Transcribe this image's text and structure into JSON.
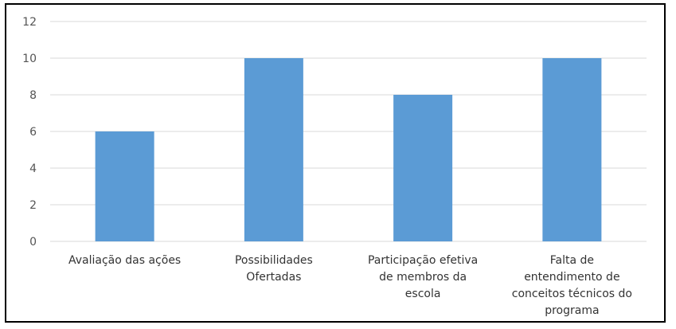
{
  "chart_data": {
    "type": "bar",
    "categories": [
      [
        "Avaliação das ações"
      ],
      [
        "Possibilidades",
        "Ofertadas"
      ],
      [
        "Participação efetiva",
        "de membros da",
        "escola"
      ],
      [
        "Falta de",
        "entendimento de",
        "conceitos técnicos do",
        "programa"
      ]
    ],
    "values": [
      6,
      10,
      8,
      10
    ],
    "ylim": [
      0,
      12
    ],
    "yticks": [
      0,
      2,
      4,
      6,
      8,
      10,
      12
    ],
    "grid": true,
    "legend": "none",
    "bar_color": "#5B9BD5",
    "grid_color": "#D9D9D9"
  }
}
